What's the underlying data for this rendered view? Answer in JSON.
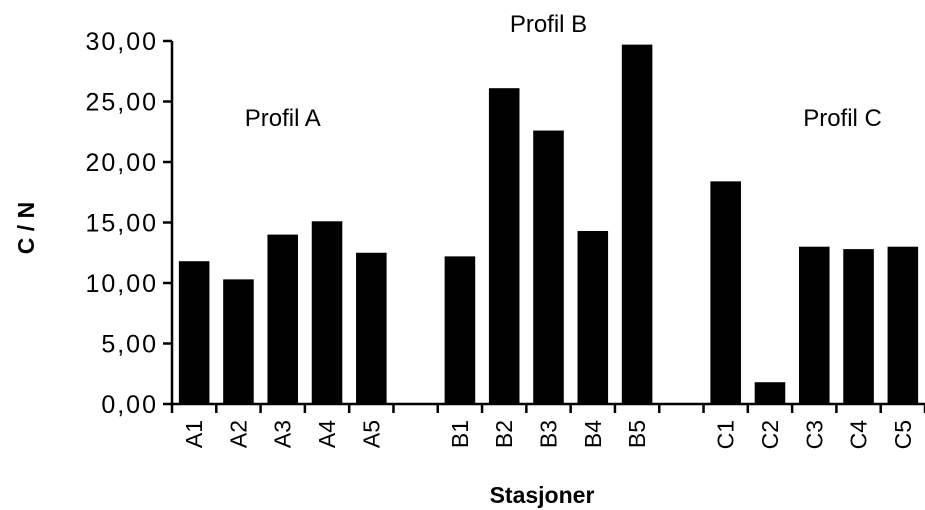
{
  "chart_data": {
    "type": "bar",
    "title": "",
    "xlabel": "Stasjoner",
    "ylabel": "C / N",
    "ylim": [
      0,
      30
    ],
    "yticks": [
      "0,00",
      "5,00",
      "10,00",
      "15,00",
      "20,00",
      "25,00",
      "30,00"
    ],
    "categories": [
      "A1",
      "A2",
      "A3",
      "A4",
      "A5",
      "",
      "B1",
      "B2",
      "B3",
      "B4",
      "B5",
      "",
      "C1",
      "C2",
      "C3",
      "C4",
      "C5"
    ],
    "values": [
      11.8,
      10.3,
      14.0,
      15.1,
      12.5,
      null,
      12.2,
      26.1,
      22.6,
      14.3,
      29.7,
      null,
      18.4,
      1.8,
      13.0,
      12.8,
      13.0
    ],
    "annotations": [
      {
        "text": "Profil  A",
        "near": "A3"
      },
      {
        "text": "Profil  B",
        "near": "B3"
      },
      {
        "text": "Profil  C",
        "near": "C4"
      }
    ],
    "bar_color": "#000000",
    "grid": false,
    "legend": "none"
  }
}
